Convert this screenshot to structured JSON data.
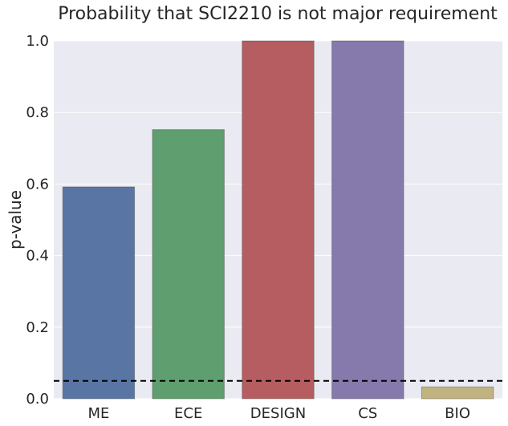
{
  "chart_data": {
    "type": "bar",
    "title": "Probability that SCI2210 is not major requirement",
    "xlabel": "",
    "ylabel": "p-value",
    "categories": [
      "ME",
      "ECE",
      "DESIGN",
      "CS",
      "BIO"
    ],
    "values": [
      0.592,
      0.752,
      1.0,
      1.0,
      0.033
    ],
    "colors": [
      "#5975a4",
      "#5f9e6e",
      "#b55d60",
      "#857aab",
      "#c1b37f"
    ],
    "ylim": [
      0,
      1.0
    ],
    "yticks": [
      "0.0",
      "0.2",
      "0.4",
      "0.6",
      "0.8",
      "1.0"
    ],
    "ytick_values": [
      0,
      0.2,
      0.4,
      0.6,
      0.8,
      1.0
    ],
    "threshold": 0.05,
    "threshold_style": "dashed",
    "grid": "horizontal",
    "background": "#eaeaf2"
  }
}
